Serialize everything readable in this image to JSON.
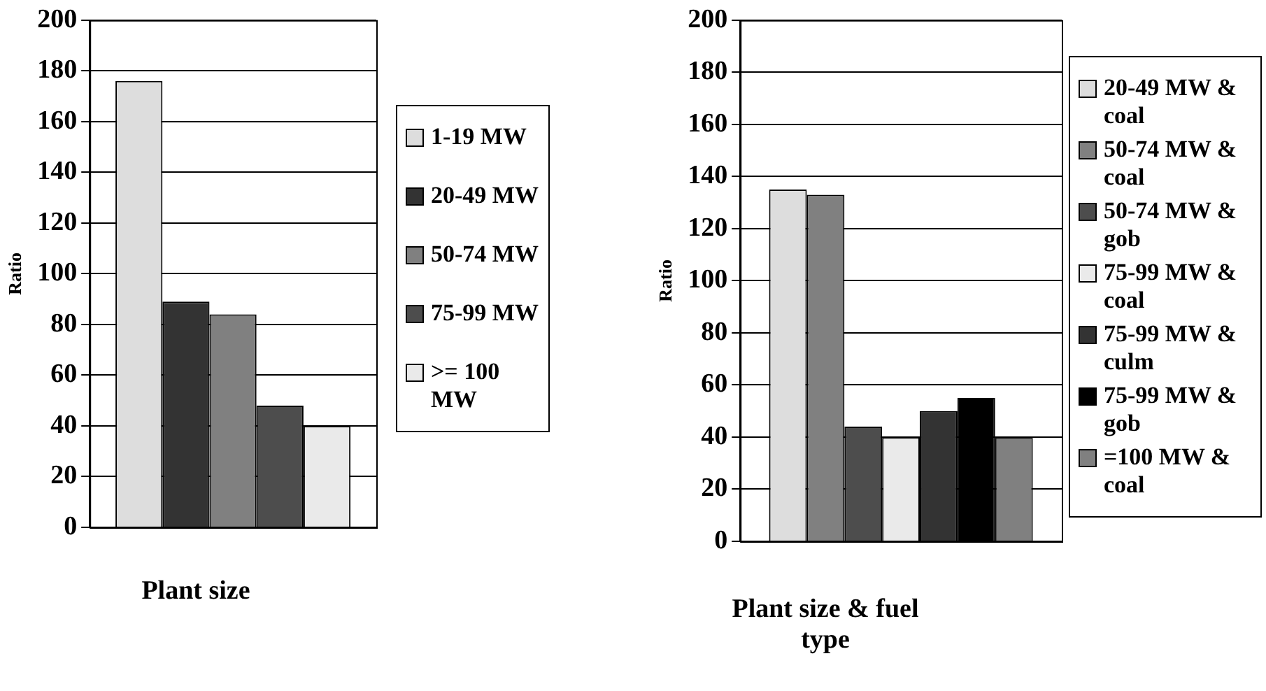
{
  "chart_data": [
    {
      "type": "bar",
      "xlabel": "Plant size",
      "ylabel": "Ratio",
      "categories": [
        null
      ],
      "ylim": [
        0,
        200
      ],
      "yticks": [
        0,
        20,
        40,
        60,
        80,
        100,
        120,
        140,
        160,
        180,
        200
      ],
      "grid": "y",
      "legend": "right",
      "tick_labels": "y",
      "series": [
        {
          "name": "1-19 MW",
          "color": "#dddddd",
          "values": [
            176
          ]
        },
        {
          "name": "20-49 MW",
          "color": "#333333",
          "values": [
            89
          ]
        },
        {
          "name": "50-74 MW",
          "color": "#808080",
          "values": [
            84
          ]
        },
        {
          "name": "75-99 MW",
          "color": "#4d4d4d",
          "values": [
            48
          ]
        },
        {
          "name": ">= 100 MW",
          "color": "#eaeaea",
          "values": [
            40
          ]
        }
      ]
    },
    {
      "type": "bar",
      "xlabel": "Plant size & fuel type",
      "ylabel": "Ratio",
      "categories": [
        null
      ],
      "ylim": [
        0,
        200
      ],
      "yticks": [
        0,
        20,
        40,
        60,
        80,
        100,
        120,
        140,
        160,
        180,
        200
      ],
      "grid": "y",
      "legend": "right",
      "tick_labels": "y",
      "series": [
        {
          "name": "20-49 MW & coal",
          "color": "#dddddd",
          "values": [
            135
          ]
        },
        {
          "name": "50-74 MW & coal",
          "color": "#808080",
          "values": [
            133
          ]
        },
        {
          "name": "50-74 MW & gob",
          "color": "#4d4d4d",
          "values": [
            44
          ]
        },
        {
          "name": "75-99 MW & coal",
          "color": "#eaeaea",
          "values": [
            40
          ]
        },
        {
          "name": "75-99 MW & culm",
          "color": "#333333",
          "values": [
            50
          ]
        },
        {
          "name": "75-99 MW & gob",
          "color": "#000000",
          "values": [
            55
          ]
        },
        {
          "name": "=100 MW & coal",
          "color": "#808080",
          "values": [
            40
          ]
        }
      ]
    }
  ]
}
